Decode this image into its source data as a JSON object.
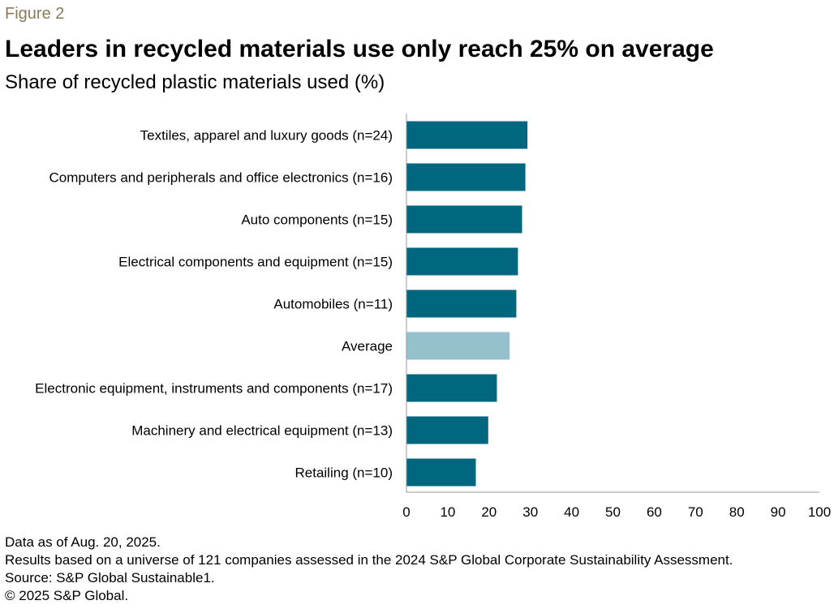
{
  "header": {
    "figure_label": "Figure 2",
    "title": "Leaders in recycled materials use only reach 25% on average",
    "subtitle": "Share of recycled plastic materials used (%)"
  },
  "chart_data": {
    "type": "bar",
    "orientation": "horizontal",
    "title": "Leaders in recycled materials use only reach 25% on average",
    "subtitle": "Share of recycled plastic materials used (%)",
    "xlabel": "",
    "ylabel": "",
    "xlim": [
      0,
      100
    ],
    "ticks": [
      "0",
      "10",
      "20",
      "30",
      "40",
      "50",
      "60",
      "70",
      "80",
      "90",
      "100"
    ],
    "grid": false,
    "categories": [
      "Textiles, apparel and luxury goods (n=24)",
      "Computers and peripherals and office electronics (n=16)",
      "Auto components (n=15)",
      "Electrical components and equipment (n=15)",
      "Automobiles (n=11)",
      "Average",
      "Electronic equipment, instruments and components (n=17)",
      "Machinery and electrical equipment (n=13)",
      "Retailing (n=10)"
    ],
    "values": [
      29.3,
      28.8,
      28.0,
      27.0,
      26.6,
      25.0,
      21.9,
      19.8,
      16.8
    ],
    "colors": [
      "#00677f",
      "#00677f",
      "#00677f",
      "#00677f",
      "#00677f",
      "#94c1cc",
      "#00677f",
      "#00677f",
      "#00677f"
    ]
  },
  "footnotes": [
    "Data as of Aug. 20, 2025.",
    "Results based on a universe of 121 companies assessed in the 2024 S&P Global Corporate Sustainability Assessment.",
    "Source: S&P Global Sustainable1.",
    "© 2025 S&P Global."
  ],
  "colors": {
    "bar": "#00677f",
    "average_bar": "#94c1cc",
    "figure_label": "#8c7a5b",
    "axis": "#9a9a9a"
  }
}
